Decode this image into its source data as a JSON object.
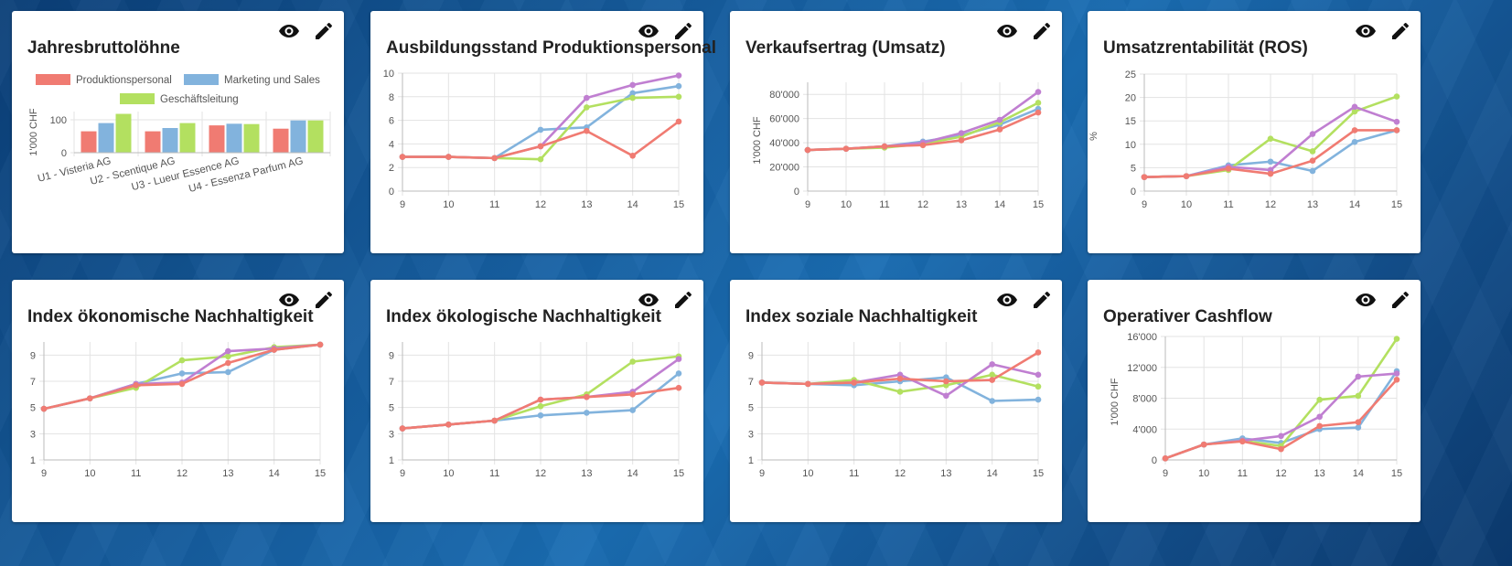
{
  "colors": {
    "prod": "#f07b72",
    "mkt": "#82b3dd",
    "gl": "#b3e060",
    "purple": "#c07fd1"
  },
  "cards": [
    {
      "title": "Jahresbruttolöhne"
    },
    {
      "title": "Ausbildungsstand Produktionspersonal"
    },
    {
      "title": "Verkaufsertrag (Umsatz)"
    },
    {
      "title": "Umsatzrentabilität (ROS)"
    },
    {
      "title": "Index ökonomische Nachhaltigkeit"
    },
    {
      "title": "Index ökologische Nachhaltigkeit"
    },
    {
      "title": "Index soziale Nachhaltigkeit"
    },
    {
      "title": "Operativer Cashflow"
    }
  ],
  "icon_names": {
    "view": "eye-icon",
    "edit": "pencil-icon"
  },
  "chart_data": [
    {
      "type": "bar",
      "title": "Jahresbruttolöhne",
      "categories": [
        "U1 - Visteria AG",
        "U2 - Scentique AG",
        "U3 - Lueur Essence AG",
        "U4 - Essenza Parfum AG"
      ],
      "series": [
        {
          "name": "Produktionspersonal",
          "color": "prod",
          "values": [
            65,
            65,
            83,
            73
          ]
        },
        {
          "name": "Marketing und Sales",
          "color": "mkt",
          "values": [
            90,
            75,
            88,
            98
          ]
        },
        {
          "name": "Geschäftsleitung",
          "color": "gl",
          "values": [
            118,
            90,
            87,
            98
          ]
        }
      ],
      "ylabel": "1'000 CHF",
      "ylim": [
        0,
        125
      ],
      "yticks": [
        0,
        100
      ],
      "ytick_labels": [
        "0",
        "100"
      ]
    },
    {
      "type": "line",
      "title": "Ausbildungsstand Produktionspersonal",
      "x": [
        9,
        10,
        11,
        12,
        13,
        14,
        15
      ],
      "ylim": [
        0,
        10
      ],
      "yticks": [
        0,
        2,
        4,
        6,
        8,
        10
      ],
      "ytick_labels": [
        "0",
        "2",
        "4",
        "6",
        "8",
        "10"
      ],
      "ylabel": "",
      "series": [
        {
          "color": "mkt",
          "values": [
            2.9,
            2.9,
            2.8,
            5.2,
            5.4,
            8.3,
            8.9
          ]
        },
        {
          "color": "gl",
          "values": [
            2.9,
            2.9,
            2.8,
            2.7,
            7.1,
            7.9,
            8.0
          ]
        },
        {
          "color": "purple",
          "values": [
            2.9,
            2.9,
            2.8,
            3.8,
            7.9,
            9.0,
            9.8
          ]
        },
        {
          "color": "prod",
          "values": [
            2.9,
            2.9,
            2.8,
            3.8,
            5.1,
            3.0,
            5.9
          ]
        }
      ]
    },
    {
      "type": "line",
      "title": "Verkaufsertrag (Umsatz)",
      "x": [
        9,
        10,
        11,
        12,
        13,
        14,
        15
      ],
      "ylim": [
        0,
        90000
      ],
      "yticks": [
        0,
        20000,
        40000,
        60000,
        80000
      ],
      "ytick_labels": [
        "0",
        "20'000",
        "40'000",
        "60'000",
        "80'000"
      ],
      "ylabel": "1'000 CHF",
      "series": [
        {
          "color": "mkt",
          "values": [
            34000,
            35000,
            37000,
            41000,
            46000,
            55000,
            68000
          ]
        },
        {
          "color": "gl",
          "values": [
            34000,
            35000,
            36000,
            39000,
            45000,
            57000,
            73000
          ]
        },
        {
          "color": "purple",
          "values": [
            34000,
            35000,
            37000,
            40000,
            48000,
            59000,
            82000
          ]
        },
        {
          "color": "prod",
          "values": [
            34000,
            35000,
            37000,
            38000,
            42000,
            51000,
            65000
          ]
        }
      ]
    },
    {
      "type": "line",
      "title": "Umsatzrentabilität (ROS)",
      "x": [
        9,
        10,
        11,
        12,
        13,
        14,
        15
      ],
      "ylim": [
        0,
        25
      ],
      "yticks": [
        0,
        5,
        10,
        15,
        20,
        25
      ],
      "ytick_labels": [
        "0",
        "5",
        "10",
        "15",
        "20",
        "25"
      ],
      "ylabel": "%",
      "series": [
        {
          "color": "mkt",
          "values": [
            3.0,
            3.2,
            5.5,
            6.3,
            4.3,
            10.5,
            13.0
          ]
        },
        {
          "color": "gl",
          "values": [
            3.0,
            3.2,
            4.5,
            11.2,
            8.5,
            17.0,
            20.2
          ]
        },
        {
          "color": "purple",
          "values": [
            3.0,
            3.2,
            5.2,
            4.5,
            12.2,
            18.0,
            14.8
          ]
        },
        {
          "color": "prod",
          "values": [
            3.0,
            3.2,
            4.8,
            3.7,
            6.5,
            13.0,
            13.0
          ]
        }
      ]
    },
    {
      "type": "line",
      "title": "Index ökonomische Nachhaltigkeit",
      "x": [
        9,
        10,
        11,
        12,
        13,
        14,
        15
      ],
      "ylim": [
        1,
        10
      ],
      "yticks": [
        1,
        3,
        5,
        7,
        9
      ],
      "ytick_labels": [
        "1",
        "3",
        "5",
        "7",
        "9"
      ],
      "ylabel": "",
      "series": [
        {
          "color": "mkt",
          "values": [
            4.9,
            5.7,
            6.8,
            7.6,
            7.7,
            9.4,
            9.8
          ]
        },
        {
          "color": "gl",
          "values": [
            4.9,
            5.7,
            6.5,
            8.6,
            8.9,
            9.6,
            9.8
          ]
        },
        {
          "color": "purple",
          "values": [
            4.9,
            5.7,
            6.8,
            6.9,
            9.3,
            9.5,
            9.8
          ]
        },
        {
          "color": "prod",
          "values": [
            4.9,
            5.7,
            6.7,
            6.8,
            8.4,
            9.4,
            9.8
          ]
        }
      ]
    },
    {
      "type": "line",
      "title": "Index ökologische Nachhaltigkeit",
      "x": [
        9,
        10,
        11,
        12,
        13,
        14,
        15
      ],
      "ylim": [
        1,
        10
      ],
      "yticks": [
        1,
        3,
        5,
        7,
        9
      ],
      "ytick_labels": [
        "1",
        "3",
        "5",
        "7",
        "9"
      ],
      "ylabel": "",
      "series": [
        {
          "color": "mkt",
          "values": [
            3.4,
            3.7,
            4.0,
            4.4,
            4.6,
            4.8,
            7.6
          ]
        },
        {
          "color": "gl",
          "values": [
            3.4,
            3.7,
            4.0,
            5.1,
            6.0,
            8.5,
            8.9
          ]
        },
        {
          "color": "purple",
          "values": [
            3.4,
            3.7,
            4.0,
            5.6,
            5.8,
            6.2,
            8.7
          ]
        },
        {
          "color": "prod",
          "values": [
            3.4,
            3.7,
            4.0,
            5.6,
            5.8,
            6.0,
            6.5
          ]
        }
      ]
    },
    {
      "type": "line",
      "title": "Index soziale Nachhaltigkeit",
      "x": [
        9,
        10,
        11,
        12,
        13,
        14,
        15
      ],
      "ylim": [
        1,
        10
      ],
      "yticks": [
        1,
        3,
        5,
        7,
        9
      ],
      "ytick_labels": [
        "1",
        "3",
        "5",
        "7",
        "9"
      ],
      "ylabel": "",
      "series": [
        {
          "color": "mkt",
          "values": [
            6.9,
            6.8,
            6.7,
            7.0,
            7.3,
            5.5,
            5.6
          ]
        },
        {
          "color": "gl",
          "values": [
            6.9,
            6.8,
            7.1,
            6.2,
            6.7,
            7.5,
            6.6
          ]
        },
        {
          "color": "purple",
          "values": [
            6.9,
            6.8,
            6.9,
            7.5,
            5.9,
            8.3,
            7.5
          ]
        },
        {
          "color": "prod",
          "values": [
            6.9,
            6.8,
            6.9,
            7.2,
            7.0,
            7.1,
            9.2
          ]
        }
      ]
    },
    {
      "type": "line",
      "title": "Operativer Cashflow",
      "x": [
        9,
        10,
        11,
        12,
        13,
        14,
        15
      ],
      "ylim": [
        0,
        16000
      ],
      "yticks": [
        0,
        4000,
        8000,
        12000,
        16000
      ],
      "ytick_labels": [
        "0",
        "4'000",
        "8'000",
        "12'000",
        "16'000"
      ],
      "ylabel": "1'000 CHF",
      "series": [
        {
          "color": "mkt",
          "values": [
            200,
            2000,
            2800,
            2200,
            4000,
            4200,
            11500
          ]
        },
        {
          "color": "gl",
          "values": [
            200,
            2000,
            2500,
            1800,
            7800,
            8300,
            15700
          ]
        },
        {
          "color": "purple",
          "values": [
            200,
            2000,
            2500,
            3100,
            5600,
            10800,
            11200
          ]
        },
        {
          "color": "prod",
          "values": [
            200,
            2000,
            2400,
            1400,
            4400,
            4900,
            10400
          ]
        }
      ]
    }
  ]
}
